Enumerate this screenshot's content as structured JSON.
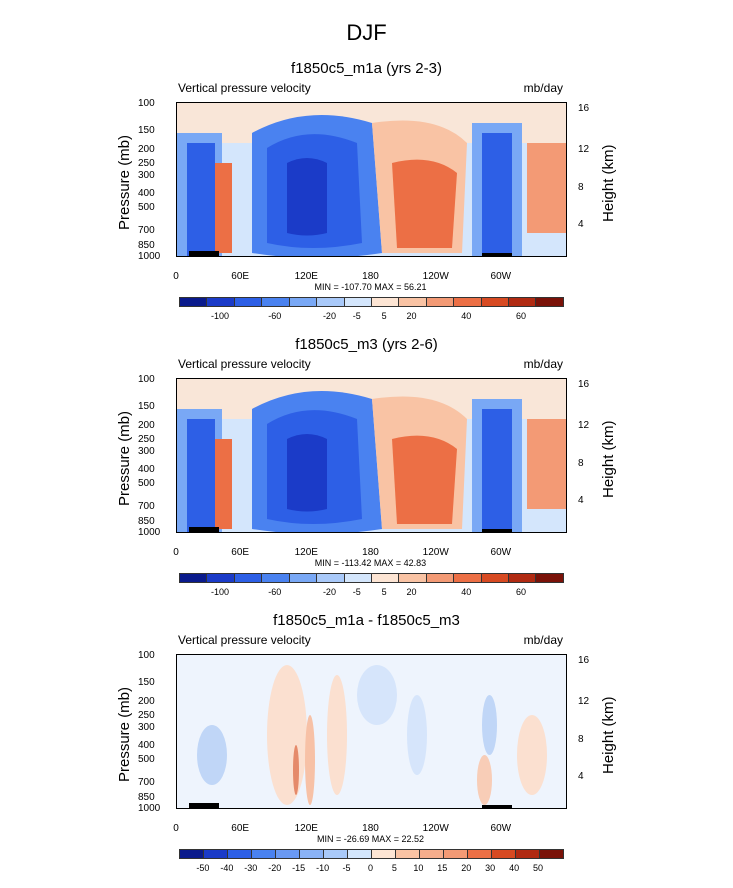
{
  "title": "DJF",
  "panels": [
    {
      "title": "f1850c5_m1a (yrs 2-3)",
      "left_label": "Vertical pressure velocity",
      "right_label": "mb/day",
      "minmax": "MIN = -107.70   MAX =  56.21",
      "cb_labels": [
        "-100",
        "-60",
        "-20",
        "-5",
        "5",
        "20",
        "40",
        "60"
      ],
      "cb_colors": [
        "#0a1a8c",
        "#1b3bc8",
        "#2d5fe6",
        "#4a82f0",
        "#79a8f5",
        "#a9c9f9",
        "#d4e6fc",
        "#fde5d4",
        "#f9c3a4",
        "#f39a75",
        "#ec6f45",
        "#d74a22",
        "#b02a12",
        "#7a1208"
      ]
    },
    {
      "title": "f1850c5_m3 (yrs 2-6)",
      "left_label": "Vertical pressure velocity",
      "right_label": "mb/day",
      "minmax": "MIN = -113.42   MAX =  42.83",
      "cb_labels": [
        "-100",
        "-60",
        "-20",
        "-5",
        "5",
        "20",
        "40",
        "60"
      ],
      "cb_colors": [
        "#0a1a8c",
        "#1b3bc8",
        "#2d5fe6",
        "#4a82f0",
        "#79a8f5",
        "#a9c9f9",
        "#d4e6fc",
        "#fde5d4",
        "#f9c3a4",
        "#f39a75",
        "#ec6f45",
        "#d74a22",
        "#b02a12",
        "#7a1208"
      ]
    },
    {
      "title": "f1850c5_m1a - f1850c5_m3",
      "left_label": "Vertical pressure velocity",
      "right_label": "mb/day",
      "minmax": "MIN = -26.69   MAX =  22.52",
      "cb_labels": [
        "-50",
        "-40",
        "-30",
        "-20",
        "-15",
        "-10",
        "-5",
        "0",
        "5",
        "10",
        "15",
        "20",
        "30",
        "40",
        "50"
      ],
      "cb_colors": [
        "#0a1a8c",
        "#1b3bc8",
        "#2d5fe6",
        "#4a82f0",
        "#6a99f3",
        "#8ab2f6",
        "#a9c9f9",
        "#d4e6fc",
        "#fde5d4",
        "#f9c3a4",
        "#f5ad8c",
        "#f39a75",
        "#ec6f45",
        "#d74a22",
        "#b02a12",
        "#7a1208"
      ]
    }
  ],
  "axes": {
    "ylabel": "Pressure (mb)",
    "y2label": "Height (km)",
    "yticks": [
      "100",
      "150",
      "200",
      "250",
      "300",
      "400",
      "500",
      "700",
      "850",
      "1000"
    ],
    "y2ticks": [
      "16",
      "12",
      "8",
      "4"
    ],
    "xticks": [
      "0",
      "60E",
      "120E",
      "180",
      "120W",
      "60W"
    ]
  },
  "chart_data": [
    {
      "type": "heatmap",
      "title": "f1850c5_m1a (yrs 2-3)",
      "variable": "Vertical pressure velocity",
      "units": "mb/day",
      "x_range": [
        0,
        360
      ],
      "y_range": [
        1000,
        100
      ],
      "min": -107.7,
      "max": 56.21,
      "levels": [
        -100,
        -80,
        -60,
        -40,
        -20,
        -10,
        -5,
        0,
        5,
        10,
        20,
        30,
        40,
        50,
        60
      ]
    },
    {
      "type": "heatmap",
      "title": "f1850c5_m3 (yrs 2-6)",
      "variable": "Vertical pressure velocity",
      "units": "mb/day",
      "x_range": [
        0,
        360
      ],
      "y_range": [
        1000,
        100
      ],
      "min": -113.42,
      "max": 42.83,
      "levels": [
        -100,
        -80,
        -60,
        -40,
        -20,
        -10,
        -5,
        0,
        5,
        10,
        20,
        30,
        40,
        50,
        60
      ]
    },
    {
      "type": "heatmap",
      "title": "f1850c5_m1a - f1850c5_m3",
      "variable": "Vertical pressure velocity",
      "units": "mb/day",
      "x_range": [
        0,
        360
      ],
      "y_range": [
        1000,
        100
      ],
      "min": -26.69,
      "max": 22.52,
      "levels": [
        -50,
        -40,
        -30,
        -20,
        -15,
        -10,
        -5,
        0,
        5,
        10,
        15,
        20,
        30,
        40,
        50
      ]
    }
  ]
}
